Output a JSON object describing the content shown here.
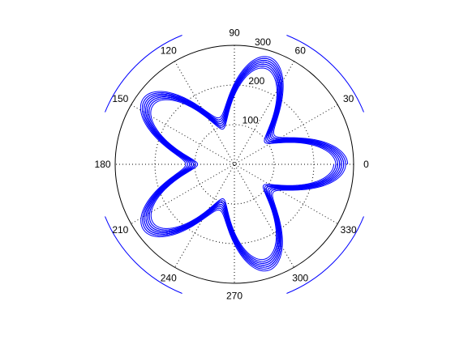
{
  "chart_data": {
    "type": "line",
    "projection": "polar",
    "title": "",
    "angle_ticks_deg": [
      0,
      30,
      60,
      90,
      120,
      150,
      180,
      210,
      240,
      270,
      300,
      330
    ],
    "angle_tick_labels": [
      "0",
      "30",
      "60",
      "90",
      "120",
      "150",
      "180",
      "210",
      "240",
      "270",
      "300",
      "330"
    ],
    "radius_tick_values": [
      100,
      200,
      300
    ],
    "radius_tick_labels": [
      "100",
      "200",
      "300"
    ],
    "rlim": [
      0,
      300
    ],
    "grid": true,
    "theta_range_deg": [
      0,
      1800
    ],
    "series": [
      {
        "r_base": 200,
        "r_amplitude": 80,
        "petals": 5,
        "spiral_per_turn": -5
      },
      {
        "r_base": 200,
        "r_amplitude": 80,
        "petals": 5,
        "spiral_per_turn": -5
      },
      {
        "r_base": 200,
        "r_amplitude": 80,
        "petals": 5,
        "spiral_per_turn": -5
      }
    ],
    "colors": {
      "series": "#0000ff",
      "frame": "#000000",
      "decoration": "#0000ff",
      "background": "#ffffff"
    }
  }
}
